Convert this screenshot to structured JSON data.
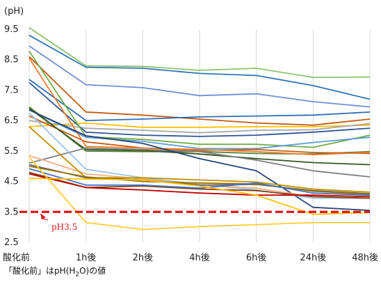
{
  "chart_data": {
    "type": "line",
    "ylabel": "(pH)",
    "categories": [
      "酸化前",
      "1h後",
      "2h後",
      "4h後",
      "6h後",
      "24h後",
      "48h後"
    ],
    "ylim": [
      2.5,
      9.5
    ],
    "yticks": [
      "2.5",
      "3.5",
      "4.5",
      "5.5",
      "6.5",
      "7.5",
      "8.5",
      "9.5"
    ],
    "grid": "vertical",
    "series": [
      {
        "color": "#8dc26b",
        "values": [
          9.55,
          8.3,
          8.28,
          8.15,
          8.22,
          7.92,
          7.93
        ]
      },
      {
        "color": "#2e75b6",
        "values": [
          9.3,
          8.25,
          8.22,
          8.05,
          7.98,
          7.65,
          7.2
        ]
      },
      {
        "color": "#6f8fd4",
        "values": [
          8.95,
          7.68,
          7.58,
          7.32,
          7.38,
          7.12,
          6.95
        ]
      },
      {
        "color": "#c55a11",
        "values": [
          8.6,
          6.78,
          6.68,
          6.55,
          6.42,
          6.35,
          6.55
        ]
      },
      {
        "color": "#2e6db4",
        "values": [
          7.85,
          6.5,
          6.55,
          6.62,
          6.65,
          6.68,
          6.78
        ]
      },
      {
        "color": "#ffc000",
        "values": [
          6.3,
          6.42,
          6.28,
          6.28,
          6.3,
          6.3,
          6.35
        ]
      },
      {
        "color": "#a5a5a5",
        "values": [
          6.5,
          6.25,
          6.18,
          6.1,
          6.18,
          6.2,
          6.4
        ]
      },
      {
        "color": "#2f5597",
        "values": [
          7.75,
          6.12,
          6.02,
          5.98,
          6.02,
          6.12,
          6.25
        ]
      },
      {
        "color": "#70ad47",
        "values": [
          8.78,
          5.97,
          5.88,
          5.72,
          5.72,
          5.62,
          6.02
        ]
      },
      {
        "color": "#5b9bd5",
        "values": [
          6.85,
          5.95,
          5.82,
          5.58,
          5.58,
          5.78,
          5.95
        ]
      },
      {
        "color": "#548235",
        "values": [
          6.95,
          5.5,
          5.48,
          5.48,
          5.42,
          5.4,
          5.48
        ]
      },
      {
        "color": "#c55a11",
        "values": [
          6.65,
          5.8,
          5.6,
          5.52,
          5.55,
          5.45,
          5.42
        ]
      },
      {
        "color": "#ed7d31",
        "values": [
          8.55,
          5.65,
          5.6,
          5.55,
          5.48,
          5.38,
          5.45
        ]
      },
      {
        "color": "#375623",
        "values": [
          6.9,
          5.55,
          5.52,
          5.4,
          5.25,
          5.12,
          5.05
        ]
      },
      {
        "color": "#7f7f7f",
        "values": [
          5.1,
          5.6,
          5.55,
          5.48,
          5.2,
          4.85,
          4.65
        ]
      },
      {
        "color": "#264478",
        "values": [
          6.85,
          6.0,
          5.75,
          5.25,
          4.85,
          3.65,
          3.55
        ]
      },
      {
        "color": "#9dc3e6",
        "values": [
          6.75,
          4.9,
          4.62,
          4.4,
          4.22,
          3.95,
          3.95
        ]
      },
      {
        "color": "#f4b183",
        "values": [
          5.35,
          4.75,
          4.58,
          4.38,
          4.28,
          4.0,
          3.95
        ]
      },
      {
        "color": "#843c0c",
        "values": [
          4.8,
          4.3,
          4.35,
          4.25,
          4.2,
          4.0,
          3.95
        ]
      },
      {
        "color": "#bf9000",
        "values": [
          6.3,
          4.62,
          4.62,
          4.55,
          4.48,
          4.25,
          4.15
        ]
      },
      {
        "color": "#636363",
        "values": [
          5.05,
          4.62,
          4.55,
          4.38,
          4.4,
          4.2,
          4.1
        ]
      },
      {
        "color": "#997300",
        "values": [
          5.0,
          4.65,
          4.5,
          4.45,
          4.42,
          4.18,
          4.08
        ]
      },
      {
        "color": "#4472c4",
        "values": [
          4.92,
          4.38,
          4.38,
          4.28,
          4.45,
          4.12,
          4.05
        ]
      },
      {
        "color": "#c00000",
        "values": [
          4.75,
          4.3,
          4.22,
          4.12,
          4.05,
          4.05,
          4.0
        ]
      },
      {
        "color": "#ffc000",
        "values": [
          4.6,
          4.58,
          4.55,
          4.35,
          4.05,
          3.42,
          3.48
        ]
      },
      {
        "color": "#ffcc33",
        "values": [
          5.3,
          3.15,
          2.92,
          3.02,
          3.08,
          3.15,
          3.15
        ]
      }
    ],
    "reference_line": {
      "value": 3.5,
      "label": "pH3.5",
      "color": "#e0161b"
    }
  },
  "footnote": {
    "before": "「酸化前」はpH(H",
    "sub": "2",
    "after": "O)の値"
  }
}
